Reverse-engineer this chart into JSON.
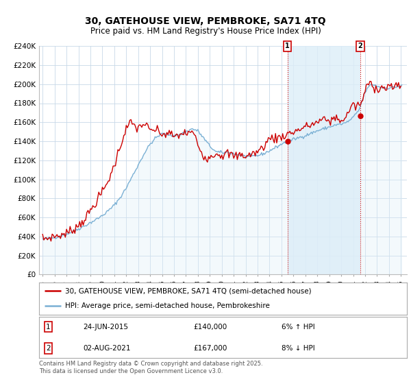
{
  "title": "30, GATEHOUSE VIEW, PEMBROKE, SA71 4TQ",
  "subtitle": "Price paid vs. HM Land Registry's House Price Index (HPI)",
  "ylim": [
    0,
    240000
  ],
  "ytick_labels": [
    "£0",
    "£20K",
    "£40K",
    "£60K",
    "£80K",
    "£100K",
    "£120K",
    "£140K",
    "£160K",
    "£180K",
    "£200K",
    "£220K",
    "£240K"
  ],
  "ytick_vals": [
    0,
    20000,
    40000,
    60000,
    80000,
    100000,
    120000,
    140000,
    160000,
    180000,
    200000,
    220000,
    240000
  ],
  "line1_color": "#cc0000",
  "line2_color": "#7ab0d4",
  "line2_fill_color": "#ddeef8",
  "shade_color": "#ddeef8",
  "annotation1_date": "24-JUN-2015",
  "annotation1_price": "£140,000",
  "annotation1_hpi": "6% ↑ HPI",
  "annotation2_date": "02-AUG-2021",
  "annotation2_price": "£167,000",
  "annotation2_hpi": "8% ↓ HPI",
  "legend_line1": "30, GATEHOUSE VIEW, PEMBROKE, SA71 4TQ (semi-detached house)",
  "legend_line2": "HPI: Average price, semi-detached house, Pembrokeshire",
  "footer": "Contains HM Land Registry data © Crown copyright and database right 2025.\nThis data is licensed under the Open Government Licence v3.0.",
  "background_color": "#ffffff",
  "grid_color": "#c8d8e8",
  "ann1_x": 2015.5,
  "ann1_y": 140000,
  "ann1_label": "1",
  "ann2_x": 2021.583,
  "ann2_y": 167000,
  "ann2_label": "2",
  "xlim_left": 1994.7,
  "xlim_right": 2025.5
}
